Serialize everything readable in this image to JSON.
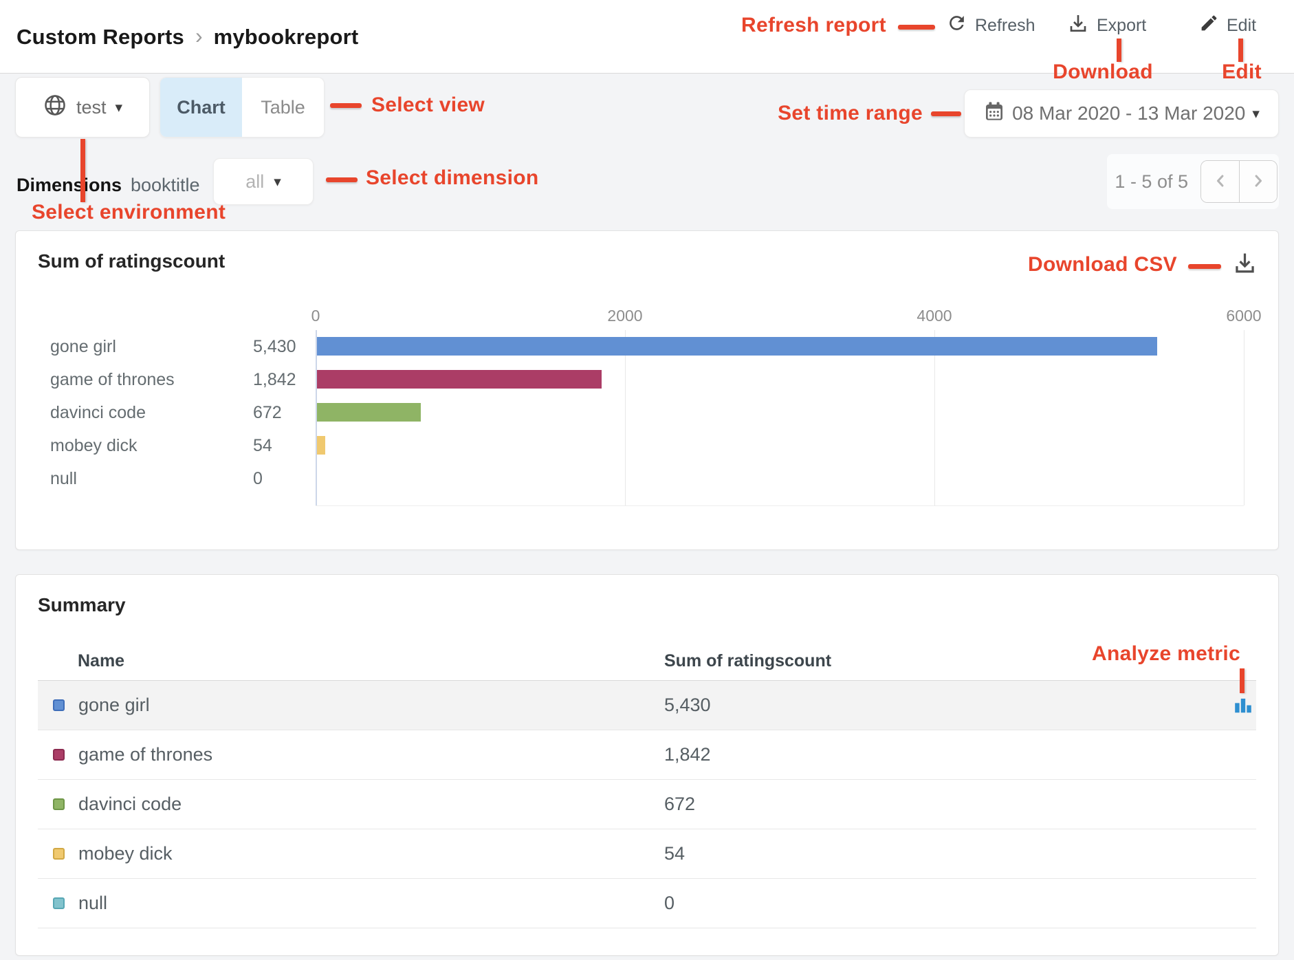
{
  "colors": {
    "annotation_red": "#e8452c",
    "active_tab_bg": "#d9ecf9",
    "analyze_icon_blue": "#2e8fd0",
    "axis_zero_line": "#ccd6e9"
  },
  "header": {
    "breadcrumb": {
      "section": "Custom Reports",
      "chevron": "›",
      "page": "mybookreport"
    },
    "refresh_label": "Refresh",
    "export_label": "Export",
    "edit_label": "Edit"
  },
  "annotations": {
    "refresh_report": "Refresh report",
    "download": "Download",
    "edit": "Edit",
    "select_view": "Select view",
    "set_time_range": "Set time range",
    "select_dimension": "Select dimension",
    "select_environment": "Select environment",
    "download_csv": "Download CSV",
    "analyze_metric": "Analyze metric"
  },
  "toolbar": {
    "environment": "test",
    "caret": "▾",
    "tabs": [
      {
        "label": "Chart",
        "active": true
      },
      {
        "label": "Table",
        "active": false
      }
    ],
    "date_range": "08 Mar 2020 - 13 Mar 2020"
  },
  "filters": {
    "dimensions_label": "Dimensions",
    "dimension_name": "booktitle",
    "dimension_value": "all"
  },
  "pagination": {
    "range_text": "1 - 5 of 5"
  },
  "chart_card": {
    "title": "Sum of ratingscount"
  },
  "chart_data": {
    "type": "bar",
    "orientation": "horizontal",
    "title": "Sum of ratingscount",
    "categories": [
      "gone girl",
      "game of thrones",
      "davinci code",
      "mobey dick",
      "null"
    ],
    "values": [
      5430,
      1842,
      672,
      54,
      0
    ],
    "value_labels": [
      "5,430",
      "1,842",
      "672",
      "54",
      "0"
    ],
    "colors": [
      "#6190d3",
      "#ab3d66",
      "#8fb465",
      "#f0c96f",
      "#82c3cd"
    ],
    "xlim": [
      0,
      6000
    ],
    "xticks": [
      0,
      2000,
      4000,
      6000
    ],
    "grid": true,
    "legend": "none"
  },
  "summary": {
    "title": "Summary",
    "columns": [
      "Name",
      "Sum of ratingscount"
    ],
    "rows": [
      {
        "name": "gone girl",
        "value": "5,430",
        "color": "#6190d3",
        "border": "#3e6db9"
      },
      {
        "name": "game of thrones",
        "value": "1,842",
        "color": "#ab3d66",
        "border": "#8c2b50"
      },
      {
        "name": "davinci code",
        "value": "672",
        "color": "#8fb465",
        "border": "#6e9647"
      },
      {
        "name": "mobey dick",
        "value": "54",
        "color": "#f0c96f",
        "border": "#d1a844"
      },
      {
        "name": "null",
        "value": "0",
        "color": "#82c3cd",
        "border": "#57a7b4"
      }
    ]
  }
}
